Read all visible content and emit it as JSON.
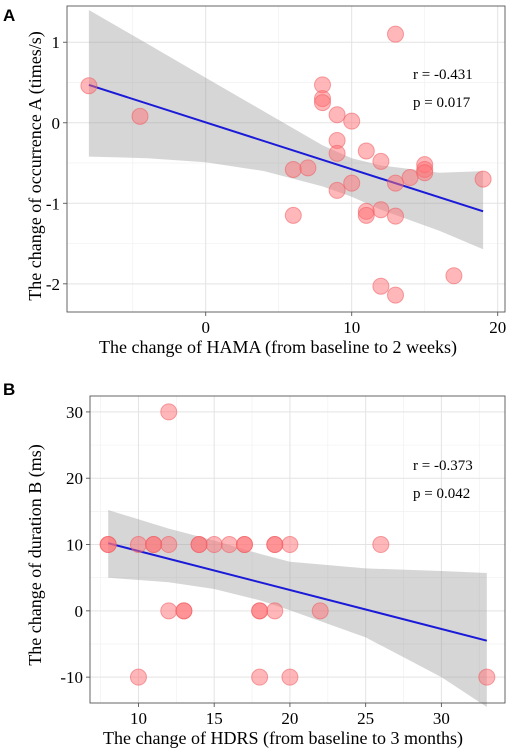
{
  "chart_data": [
    {
      "type": "scatter",
      "panel_label": "A",
      "xlabel": "The change of HAMA (from baseline to 2 weeks)",
      "ylabel": "The change of occurrence A (times/s)",
      "xlim": [
        -9.5,
        20.5
      ],
      "ylim": [
        -2.35,
        1.45
      ],
      "x_ticks": [
        0,
        10,
        20
      ],
      "y_ticks": [
        -2,
        -1,
        0,
        1
      ],
      "grid": true,
      "annotations": [
        "r = -0.431",
        "p = 0.017"
      ],
      "fit": {
        "x": [
          -8,
          19
        ],
        "y": [
          0.47,
          -1.1
        ]
      },
      "ci_band": {
        "x": [
          -8,
          -4,
          0,
          4,
          8,
          10,
          12,
          16,
          19
        ],
        "upper": [
          1.4,
          0.98,
          0.56,
          0.14,
          -0.28,
          -0.44,
          -0.53,
          -0.62,
          -0.6
        ],
        "lower": [
          -0.42,
          -0.44,
          -0.49,
          -0.6,
          -0.79,
          -0.92,
          -1.08,
          -1.34,
          -1.57
        ]
      },
      "points": [
        {
          "x": -8,
          "y": 0.46
        },
        {
          "x": -4.5,
          "y": 0.08
        },
        {
          "x": 6,
          "y": -0.58
        },
        {
          "x": 6,
          "y": -1.15
        },
        {
          "x": 7,
          "y": -0.56
        },
        {
          "x": 8,
          "y": 0.47
        },
        {
          "x": 8,
          "y": 0.3
        },
        {
          "x": 8,
          "y": 0.25
        },
        {
          "x": 9,
          "y": 0.1
        },
        {
          "x": 9,
          "y": -0.22
        },
        {
          "x": 9,
          "y": -0.38
        },
        {
          "x": 9,
          "y": -0.84
        },
        {
          "x": 10,
          "y": 0.02
        },
        {
          "x": 10,
          "y": -0.75
        },
        {
          "x": 11,
          "y": -0.35
        },
        {
          "x": 11,
          "y": -1.1
        },
        {
          "x": 11,
          "y": -1.15
        },
        {
          "x": 12,
          "y": -0.48
        },
        {
          "x": 12,
          "y": -1.08
        },
        {
          "x": 12,
          "y": -2.03
        },
        {
          "x": 13,
          "y": 1.1
        },
        {
          "x": 13,
          "y": -0.75
        },
        {
          "x": 13,
          "y": -1.16
        },
        {
          "x": 13,
          "y": -2.14
        },
        {
          "x": 14,
          "y": -0.68
        },
        {
          "x": 15,
          "y": -0.52
        },
        {
          "x": 15,
          "y": -0.58
        },
        {
          "x": 15,
          "y": -0.62
        },
        {
          "x": 17,
          "y": -1.9
        },
        {
          "x": 19,
          "y": -0.7
        }
      ]
    },
    {
      "type": "scatter",
      "panel_label": "B",
      "xlabel": "The change of HDRS (from baseline to 3 months)",
      "ylabel": "The change of duration B (ms)",
      "xlim": [
        6.8,
        34.2
      ],
      "ylim": [
        -13.9,
        32.4
      ],
      "x_ticks": [
        10,
        15,
        20,
        25,
        30
      ],
      "y_ticks": [
        -10,
        0,
        10,
        20,
        30
      ],
      "grid": true,
      "annotations": [
        "r = -0.373",
        "p = 0.042"
      ],
      "fit": {
        "x": [
          8,
          33
        ],
        "y": [
          10.2,
          -4.5
        ]
      },
      "ci_band": {
        "x": [
          8,
          12,
          15,
          18,
          20,
          25,
          30,
          33
        ],
        "upper": [
          15.2,
          12.4,
          10.6,
          8.6,
          7.4,
          6.4,
          6.0,
          5.7
        ],
        "lower": [
          5.0,
          4.3,
          3.3,
          1.6,
          0.1,
          -4.0,
          -10.0,
          -14.5
        ]
      },
      "points": [
        {
          "x": 8,
          "y": 10
        },
        {
          "x": 8,
          "y": 10
        },
        {
          "x": 10,
          "y": 10
        },
        {
          "x": 10,
          "y": -10
        },
        {
          "x": 11,
          "y": 10
        },
        {
          "x": 11,
          "y": 10
        },
        {
          "x": 12,
          "y": 30
        },
        {
          "x": 12,
          "y": 10
        },
        {
          "x": 12,
          "y": 0
        },
        {
          "x": 13,
          "y": 0
        },
        {
          "x": 13,
          "y": 0
        },
        {
          "x": 14,
          "y": 10
        },
        {
          "x": 14,
          "y": 10
        },
        {
          "x": 15,
          "y": 10
        },
        {
          "x": 16,
          "y": 10
        },
        {
          "x": 17,
          "y": 10
        },
        {
          "x": 17,
          "y": 10
        },
        {
          "x": 18,
          "y": 0
        },
        {
          "x": 18,
          "y": 0
        },
        {
          "x": 18,
          "y": -10
        },
        {
          "x": 19,
          "y": 10
        },
        {
          "x": 19,
          "y": 10
        },
        {
          "x": 19,
          "y": 0
        },
        {
          "x": 20,
          "y": 10
        },
        {
          "x": 20,
          "y": -10
        },
        {
          "x": 22,
          "y": 0
        },
        {
          "x": 26,
          "y": 10
        },
        {
          "x": 33,
          "y": -10
        }
      ]
    }
  ]
}
